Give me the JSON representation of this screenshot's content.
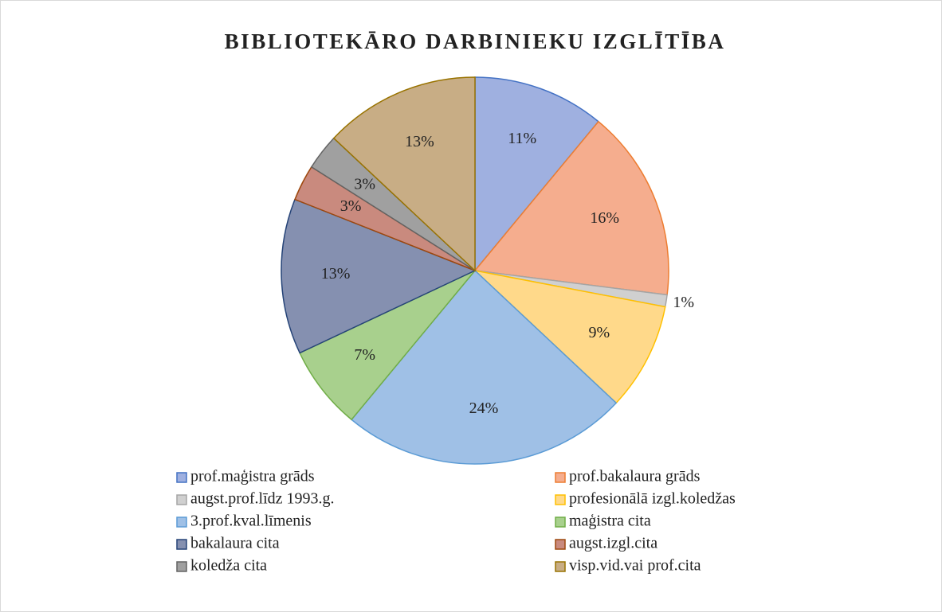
{
  "chart_data": {
    "type": "pie",
    "title": "BIBLIOTEKĀRO DARBINIEKU IZGLĪTĪBA",
    "categories": [
      "prof.maģistra grāds",
      "prof.bakalaura grāds",
      "augst.prof.līdz 1993.g.",
      "profesionālā izgl.koledžas",
      "3.prof.kval.līmenis",
      "maģistra cita",
      "bakalaura cita",
      "augst.izgl.cita",
      "koledža cita",
      "visp.vid.vai prof.cita"
    ],
    "values": [
      11,
      16,
      1,
      9,
      24,
      7,
      13,
      3,
      3,
      13
    ],
    "value_labels": [
      "11%",
      "16%",
      "1%",
      "9%",
      "24%",
      "7%",
      "13%",
      "3%",
      "3%",
      "13%"
    ],
    "colors": [
      "#9fb0e0",
      "#f5ad8e",
      "#d0d0d0",
      "#ffd98a",
      "#9fc0e6",
      "#a8d08d",
      "#8590b0",
      "#c98a7e",
      "#a0a0a0",
      "#c8ad85"
    ],
    "edge_colors": [
      "#4472c4",
      "#ed7d31",
      "#a5a5a5",
      "#ffc000",
      "#5b9bd5",
      "#70ad47",
      "#264478",
      "#9e480e",
      "#636363",
      "#997300"
    ],
    "legend": "bottom"
  }
}
